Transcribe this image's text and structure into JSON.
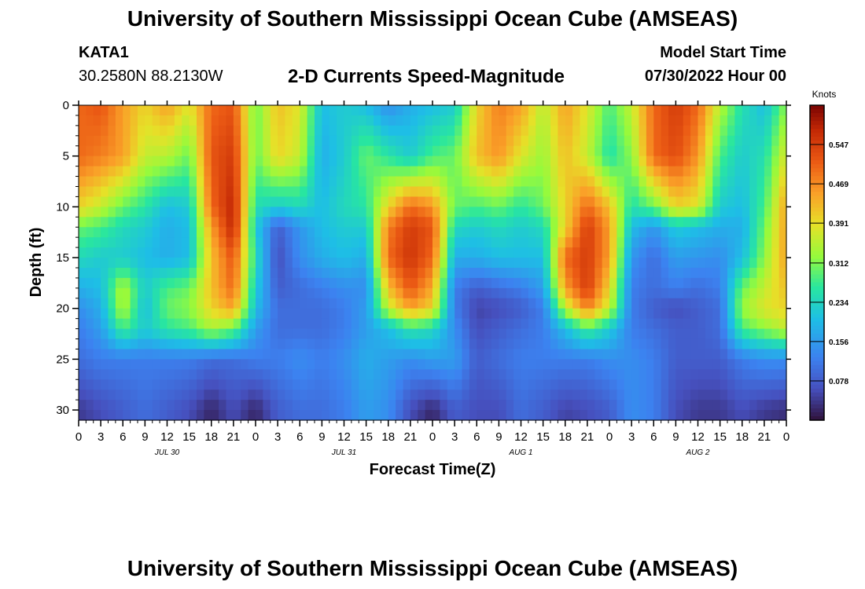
{
  "header": {
    "title": "University of Southern Mississippi Ocean Cube (AMSEAS)",
    "station": "KATA1",
    "coordinates": "30.2580N  88.2130W",
    "subtitle": "2-D Currents Speed-Magnitude",
    "model_start_label": "Model Start Time",
    "model_start_value": "07/30/2022 Hour 00"
  },
  "footer": {
    "title": "University of Southern Mississippi Ocean Cube (AMSEAS)"
  },
  "chart_data": {
    "type": "heatmap",
    "title": "2-D Currents Speed-Magnitude",
    "xlabel": "Forecast Time(Z)",
    "ylabel": "Depth (ft)",
    "x_range_hours": [
      0,
      96
    ],
    "y_range_ft": [
      0,
      31
    ],
    "y_inverted": true,
    "x_tick_labels": [
      "0",
      "3",
      "6",
      "9",
      "12",
      "15",
      "18",
      "21",
      "0",
      "3",
      "6",
      "9",
      "12",
      "15",
      "18",
      "21",
      "0",
      "3",
      "6",
      "9",
      "12",
      "15",
      "18",
      "21",
      "0",
      "3",
      "6",
      "9",
      "12",
      "15",
      "18",
      "21",
      "0"
    ],
    "y_ticks": [
      0,
      5,
      10,
      15,
      20,
      25,
      30
    ],
    "y_tick_labels": [
      "0",
      "5",
      "10",
      "15",
      "20",
      "25",
      "30"
    ],
    "date_labels": [
      {
        "text": "JUL 30",
        "hour": 12
      },
      {
        "text": "JUL 31",
        "hour": 36
      },
      {
        "text": "AUG 1",
        "hour": 60
      },
      {
        "text": "AUG 2",
        "hour": 84
      }
    ],
    "colorbar": {
      "label": "Knots",
      "min": 0.0,
      "max": 0.625,
      "tick_values": [
        0.547,
        0.469,
        0.391,
        0.312,
        0.234,
        0.156,
        0.078
      ],
      "tick_labels": [
        "0.547",
        "0.469",
        "0.391",
        "0.312",
        "0.234",
        "0.156",
        "0.078"
      ]
    },
    "depths_ft": [
      0,
      5,
      10,
      12,
      15,
      18,
      20,
      22,
      25,
      30
    ],
    "times_hr": [
      0,
      3,
      6,
      9,
      12,
      15,
      18,
      21,
      24,
      27,
      30,
      33,
      36,
      39,
      42,
      45,
      48,
      51,
      54,
      57,
      60,
      63,
      66,
      69,
      72,
      75,
      78,
      81,
      84,
      87,
      90,
      93,
      96
    ],
    "speed_knots": [
      [
        0.5,
        0.52,
        0.45,
        0.4,
        0.45,
        0.38,
        0.5,
        0.52,
        0.3,
        0.42,
        0.38,
        0.2,
        0.22,
        0.2,
        0.14,
        0.18,
        0.2,
        0.22,
        0.4,
        0.48,
        0.45,
        0.35,
        0.45,
        0.38,
        0.28,
        0.36,
        0.5,
        0.55,
        0.5,
        0.35,
        0.25,
        0.2,
        0.32
      ],
      [
        0.5,
        0.48,
        0.45,
        0.36,
        0.35,
        0.3,
        0.52,
        0.55,
        0.3,
        0.4,
        0.36,
        0.18,
        0.22,
        0.3,
        0.26,
        0.22,
        0.28,
        0.3,
        0.42,
        0.46,
        0.38,
        0.33,
        0.42,
        0.36,
        0.25,
        0.32,
        0.5,
        0.53,
        0.46,
        0.28,
        0.22,
        0.25,
        0.38
      ],
      [
        0.4,
        0.36,
        0.3,
        0.26,
        0.2,
        0.22,
        0.5,
        0.58,
        0.25,
        0.22,
        0.24,
        0.2,
        0.24,
        0.26,
        0.4,
        0.5,
        0.46,
        0.3,
        0.28,
        0.3,
        0.26,
        0.3,
        0.4,
        0.5,
        0.42,
        0.25,
        0.3,
        0.4,
        0.38,
        0.22,
        0.2,
        0.28,
        0.45
      ],
      [
        0.3,
        0.28,
        0.24,
        0.22,
        0.18,
        0.2,
        0.45,
        0.58,
        0.22,
        0.08,
        0.15,
        0.2,
        0.22,
        0.22,
        0.48,
        0.55,
        0.52,
        0.24,
        0.22,
        0.24,
        0.22,
        0.24,
        0.4,
        0.55,
        0.45,
        0.2,
        0.15,
        0.22,
        0.2,
        0.18,
        0.18,
        0.3,
        0.45
      ],
      [
        0.24,
        0.22,
        0.22,
        0.2,
        0.18,
        0.2,
        0.42,
        0.52,
        0.25,
        0.06,
        0.14,
        0.18,
        0.2,
        0.18,
        0.5,
        0.56,
        0.5,
        0.18,
        0.18,
        0.2,
        0.2,
        0.2,
        0.5,
        0.55,
        0.45,
        0.15,
        0.1,
        0.16,
        0.15,
        0.14,
        0.2,
        0.32,
        0.45
      ],
      [
        0.18,
        0.2,
        0.35,
        0.22,
        0.28,
        0.3,
        0.42,
        0.5,
        0.22,
        0.08,
        0.1,
        0.12,
        0.14,
        0.14,
        0.42,
        0.52,
        0.44,
        0.12,
        0.08,
        0.1,
        0.12,
        0.16,
        0.45,
        0.55,
        0.4,
        0.12,
        0.1,
        0.12,
        0.1,
        0.12,
        0.3,
        0.36,
        0.42
      ],
      [
        0.14,
        0.18,
        0.35,
        0.2,
        0.3,
        0.32,
        0.4,
        0.45,
        0.2,
        0.1,
        0.1,
        0.1,
        0.12,
        0.16,
        0.36,
        0.45,
        0.4,
        0.12,
        0.05,
        0.06,
        0.08,
        0.12,
        0.35,
        0.48,
        0.36,
        0.12,
        0.08,
        0.06,
        0.08,
        0.1,
        0.33,
        0.38,
        0.4
      ],
      [
        0.12,
        0.16,
        0.28,
        0.22,
        0.26,
        0.28,
        0.34,
        0.3,
        0.16,
        0.1,
        0.1,
        0.1,
        0.12,
        0.16,
        0.2,
        0.26,
        0.24,
        0.14,
        0.06,
        0.08,
        0.1,
        0.12,
        0.2,
        0.28,
        0.22,
        0.12,
        0.1,
        0.08,
        0.08,
        0.1,
        0.28,
        0.32,
        0.36
      ],
      [
        0.1,
        0.12,
        0.12,
        0.12,
        0.12,
        0.12,
        0.1,
        0.1,
        0.12,
        0.12,
        0.14,
        0.12,
        0.14,
        0.18,
        0.16,
        0.14,
        0.16,
        0.16,
        0.08,
        0.1,
        0.12,
        0.12,
        0.12,
        0.12,
        0.14,
        0.14,
        0.12,
        0.08,
        0.08,
        0.08,
        0.12,
        0.14,
        0.14
      ],
      [
        0.04,
        0.06,
        0.08,
        0.1,
        0.08,
        0.06,
        0.02,
        0.06,
        0.02,
        0.08,
        0.1,
        0.1,
        0.12,
        0.16,
        0.14,
        0.06,
        0.02,
        0.08,
        0.06,
        0.06,
        0.1,
        0.08,
        0.05,
        0.06,
        0.08,
        0.14,
        0.12,
        0.06,
        0.04,
        0.04,
        0.06,
        0.04,
        0.03
      ]
    ]
  }
}
